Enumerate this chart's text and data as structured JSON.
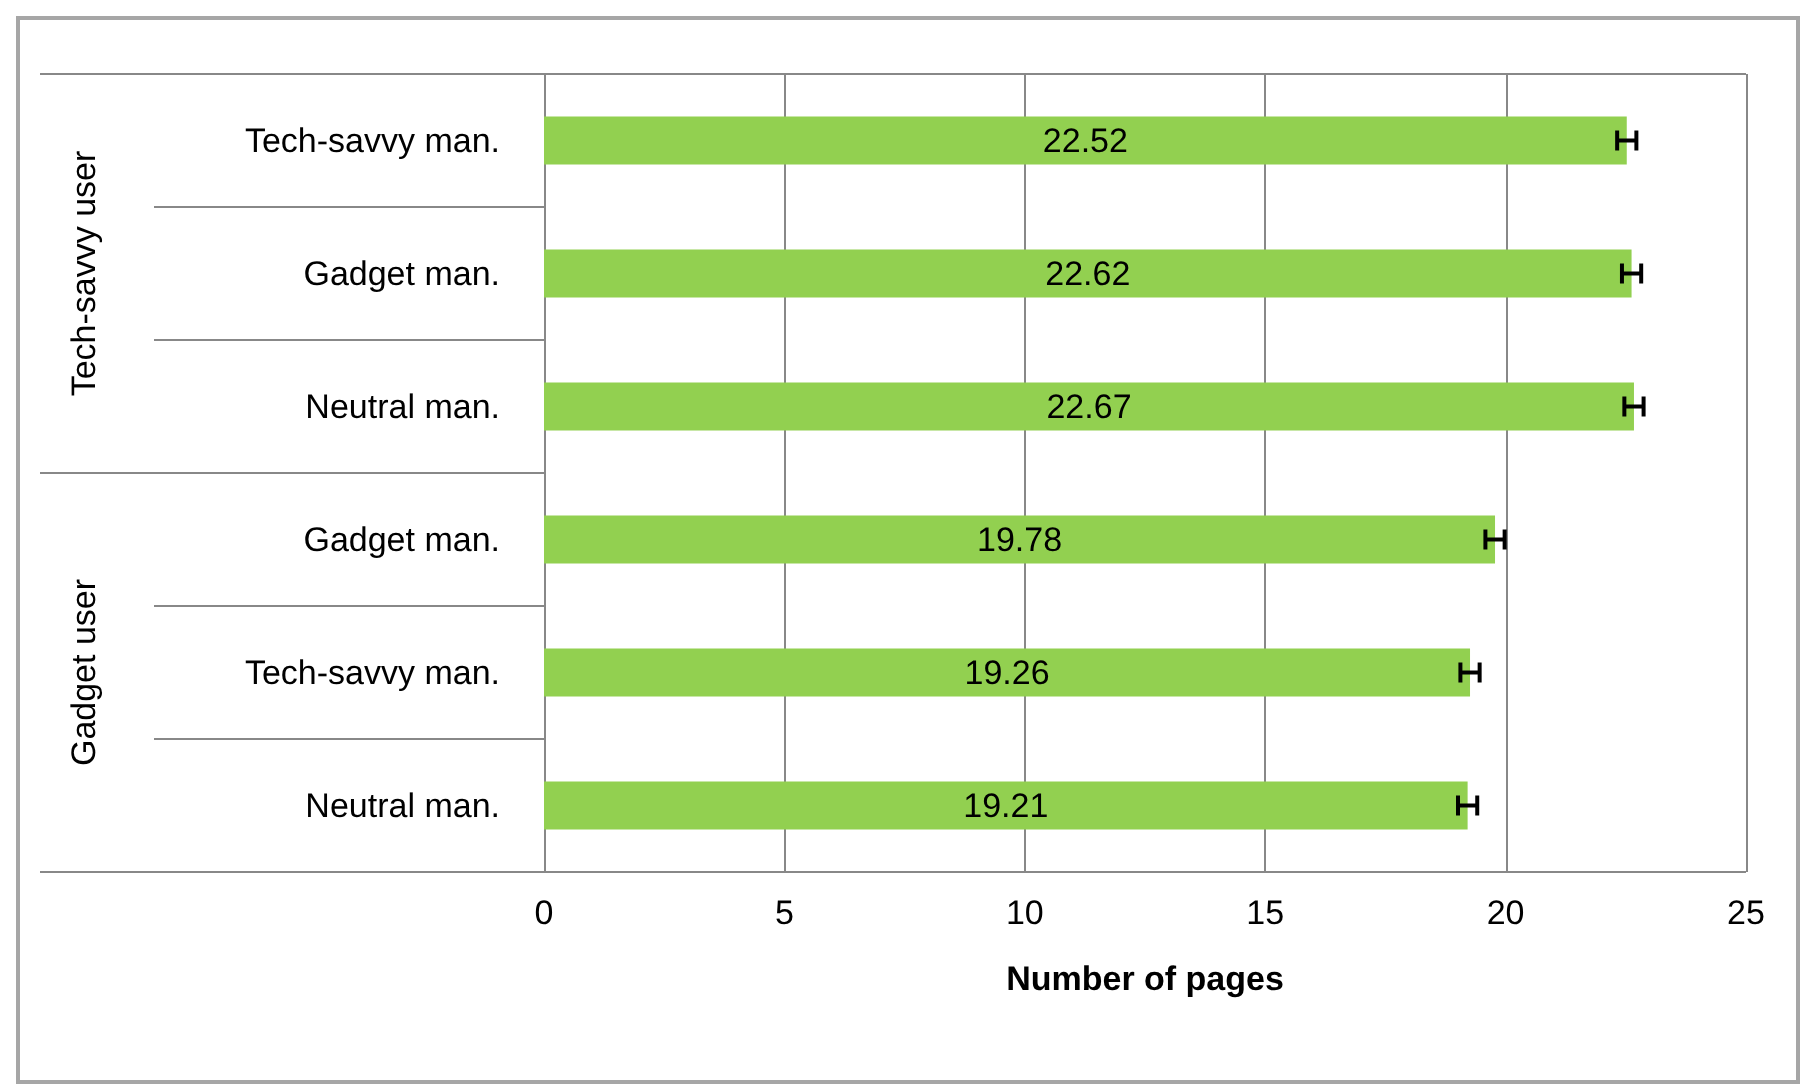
{
  "chart_data": {
    "type": "bar",
    "orientation": "horizontal",
    "xlabel": "Number of pages",
    "categories": [
      "Tech-savvy man.",
      "Gadget man.",
      "Neutral man.",
      "Gadget man.",
      "Tech-savvy man.",
      "Neutral man."
    ],
    "annotations": [
      "Tech-savvy user",
      "Gadget user"
    ],
    "values": [
      22.52,
      22.62,
      22.67,
      19.78,
      19.26,
      19.21
    ],
    "errors": [
      0.2,
      0.2,
      0.2,
      0.2,
      0.2,
      0.2
    ],
    "color": "#92d050",
    "data_labels": true,
    "xlim": [
      0,
      25
    ],
    "xticks": [
      0,
      5,
      10,
      15,
      20,
      25
    ],
    "grid": "x"
  }
}
